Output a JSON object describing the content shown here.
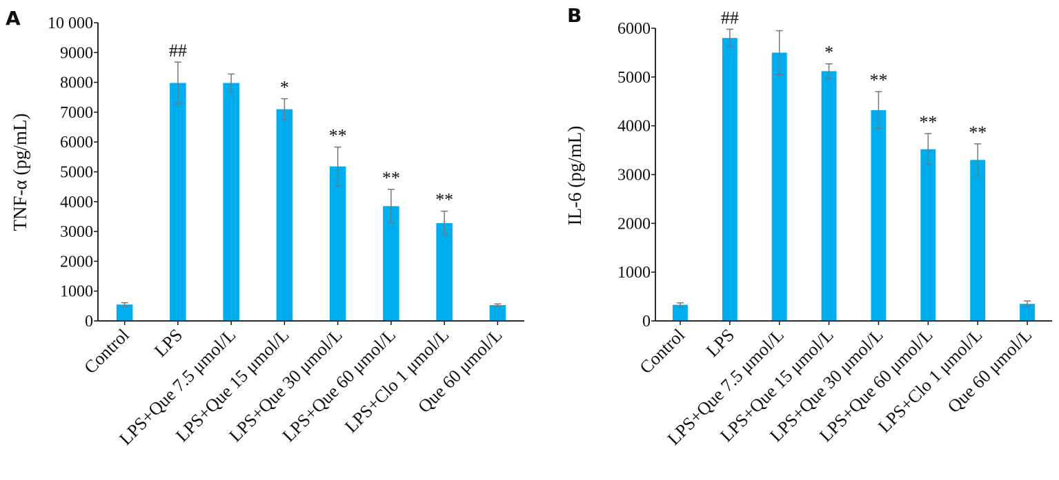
{
  "bar_color": "#00aeef",
  "error_bar_color": "#777777",
  "axis_color": "#111111",
  "chart_data": [
    {
      "type": "bar",
      "panel": "A",
      "ylabel": "TNF-α (pg/mL)",
      "ylim": [
        0,
        10000
      ],
      "yticks": [
        0,
        1000,
        2000,
        3000,
        4000,
        5000,
        6000,
        7000,
        8000,
        9000,
        10000
      ],
      "ytick_labels": [
        "0",
        "1000",
        "2000",
        "3000",
        "4000",
        "5000",
        "6000",
        "7000",
        "8000",
        "9000",
        "10 000"
      ],
      "categories": [
        "Control",
        "LPS",
        "LPS+Que 7.5 μmol/L",
        "LPS+Que 15 μmol/L",
        "LPS+Que 30 μmol/L",
        "LPS+Que 60 μmol/L",
        "LPS+Clo 1 μmol/L",
        "Que 60 μmol/L"
      ],
      "values": [
        550,
        7980,
        7980,
        7100,
        5180,
        3850,
        3280,
        530
      ],
      "errors": [
        60,
        700,
        300,
        350,
        650,
        560,
        400,
        40
      ],
      "annotations": [
        "",
        "##",
        "",
        "*",
        "**",
        "**",
        "**",
        ""
      ]
    },
    {
      "type": "bar",
      "panel": "B",
      "ylabel": "IL-6 (pg/mL)",
      "ylim": [
        0,
        6000
      ],
      "yticks": [
        0,
        1000,
        2000,
        3000,
        4000,
        5000,
        6000
      ],
      "ytick_labels": [
        "0",
        "1000",
        "2000",
        "3000",
        "4000",
        "5000",
        "6000"
      ],
      "categories": [
        "Control",
        "LPS",
        "LPS+Que 7.5 μmol/L",
        "LPS+Que 15 μmol/L",
        "LPS+Que 30 μmol/L",
        "LPS+Que 60 μmol/L",
        "LPS+Clo 1 μmol/L",
        "Que 60 μmol/L"
      ],
      "values": [
        330,
        5800,
        5500,
        5120,
        4320,
        3520,
        3300,
        350
      ],
      "errors": [
        40,
        180,
        450,
        150,
        380,
        320,
        330,
        60
      ],
      "annotations": [
        "",
        "##",
        "",
        "*",
        "**",
        "**",
        "**",
        ""
      ]
    }
  ]
}
